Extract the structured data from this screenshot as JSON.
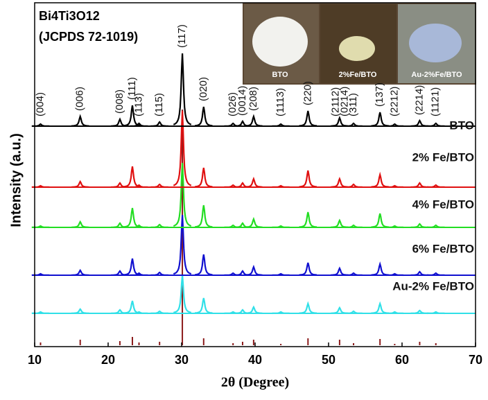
{
  "chart_data": {
    "type": "xrd-stack",
    "title_lines": [
      "Bi4Ti3O12",
      "(JCPDS 72-1019)"
    ],
    "x_label": "2θ (Degree)",
    "y_label": "Intensity (a.u.)",
    "xlim": [
      10,
      70
    ],
    "xticks": [
      10,
      20,
      30,
      40,
      50,
      60,
      70
    ],
    "x": [
      10.8,
      16.2,
      21.6,
      23.3,
      24.2,
      27.0,
      30.1,
      33.0,
      37.0,
      38.3,
      39.8,
      43.5,
      47.2,
      51.5,
      53.4,
      57.0,
      59.0,
      62.4,
      64.6
    ],
    "series": [
      {
        "name": "BTO",
        "color": "#000000",
        "values": [
          3,
          14,
          10,
          30,
          4,
          6,
          105,
          28,
          4,
          7,
          14,
          3,
          22,
          12,
          4,
          20,
          3,
          8,
          4
        ]
      },
      {
        "name": "2% Fe/BTO",
        "color": "#e01010",
        "values": [
          2,
          8,
          6,
          30,
          3,
          4,
          110,
          28,
          3,
          6,
          12,
          2,
          24,
          12,
          4,
          18,
          2,
          6,
          3
        ]
      },
      {
        "name": "4% Fe/BTO",
        "color": "#22dd22",
        "values": [
          2,
          8,
          6,
          28,
          3,
          4,
          93,
          32,
          3,
          6,
          12,
          2,
          22,
          10,
          3,
          20,
          2,
          5,
          3
        ]
      },
      {
        "name": "6% Fe/BTO",
        "color": "#1010d0",
        "values": [
          2,
          7,
          6,
          24,
          3,
          4,
          87,
          30,
          3,
          6,
          12,
          2,
          18,
          10,
          3,
          16,
          2,
          5,
          3
        ]
      },
      {
        "name": "Au-2% Fe/BTO",
        "color": "#30e0e8",
        "values": [
          2,
          6,
          5,
          18,
          2,
          3,
          55,
          22,
          2,
          5,
          9,
          2,
          14,
          8,
          3,
          14,
          2,
          4,
          2
        ]
      }
    ],
    "reference": {
      "color": "#8b1a1a",
      "values": [
        4,
        8,
        6,
        12,
        4,
        5,
        340,
        10,
        3,
        5,
        8,
        2,
        10,
        8,
        3,
        9,
        2,
        5,
        3
      ]
    },
    "annotations": [
      {
        "text": "(004)",
        "x": 10.8
      },
      {
        "text": "(006)",
        "x": 16.2
      },
      {
        "text": "(008)",
        "x": 21.6
      },
      {
        "text": "(111)",
        "x": 23.3
      },
      {
        "text": "(113)",
        "x": 24.2
      },
      {
        "text": "(115)",
        "x": 27.0
      },
      {
        "text": "(117)",
        "x": 30.1
      },
      {
        "text": "(020)",
        "x": 33.0
      },
      {
        "text": "(026)",
        "x": 37.0
      },
      {
        "text": "(0014)",
        "x": 38.3
      },
      {
        "text": "(208)",
        "x": 39.8
      },
      {
        "text": "(1113)",
        "x": 43.5
      },
      {
        "text": "(220)",
        "x": 47.2
      },
      {
        "text": "(2112)",
        "x": 51.0
      },
      {
        "text": "(0214)",
        "x": 52.2
      },
      {
        "text": "(311)",
        "x": 53.4
      },
      {
        "text": "(137)",
        "x": 57.0
      },
      {
        "text": "(2212)",
        "x": 59.0
      },
      {
        "text": "(2214)",
        "x": 62.4
      },
      {
        "text": "(1121)",
        "x": 64.6
      }
    ],
    "photo_labels": [
      "BTO",
      "2%Fe/BTO",
      "Au-2%Fe/BTO"
    ]
  }
}
